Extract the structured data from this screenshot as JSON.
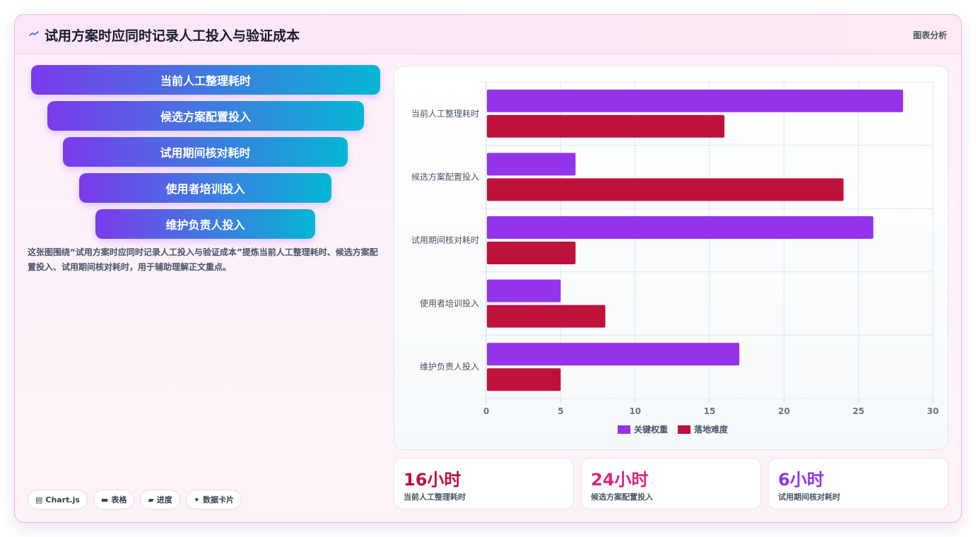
{
  "header": {
    "icon": "trend-line-icon",
    "title": "试用方案时应同时记录人工投入与验证成本",
    "tag": "图表分析"
  },
  "funnel": {
    "steps": [
      "当前人工整理耗时",
      "候选方案配置投入",
      "试用期间核对耗时",
      "使用者培训投入",
      "维护负责人投入"
    ]
  },
  "description": "这张图围绕“试用方案时应同时记录人工投入与验证成本”提炼当前人工整理耗时、候选方案配置投入、试用期间核对耗时，用于辅助理解正文重点。",
  "pills": [
    {
      "icon": "chart-icon",
      "glyph": "▤",
      "label": "Chart.js"
    },
    {
      "icon": "table-icon",
      "glyph": "▬",
      "label": "表格"
    },
    {
      "icon": "progress-icon",
      "glyph": "▰",
      "label": "进度"
    },
    {
      "icon": "sparkle-icon",
      "glyph": "✦",
      "label": "数据卡片"
    }
  ],
  "chart_data": {
    "type": "bar",
    "orientation": "horizontal",
    "categories": [
      "当前人工整理耗时",
      "候选方案配置投入",
      "试用期间核对耗时",
      "使用者培训投入",
      "维护负责人投入"
    ],
    "series": [
      {
        "name": "关键权重",
        "values": [
          28,
          6,
          26,
          5,
          17
        ],
        "color": "#9333ea"
      },
      {
        "name": "落地难度",
        "values": [
          16,
          24,
          6,
          8,
          5
        ],
        "color": "#be123c"
      }
    ],
    "xlim": [
      0,
      30
    ],
    "xticks": [
      "0",
      "5",
      "10",
      "15",
      "20",
      "25",
      "30"
    ],
    "grid": true,
    "legend": "bottom"
  },
  "stats": [
    {
      "value": "16小时",
      "label": "当前人工整理耗时",
      "color": "#be123c"
    },
    {
      "value": "24小时",
      "label": "候选方案配置投入",
      "color": "#db2777"
    },
    {
      "value": "6小时",
      "label": "试用期间核对耗时",
      "color": "#9333ea"
    }
  ]
}
